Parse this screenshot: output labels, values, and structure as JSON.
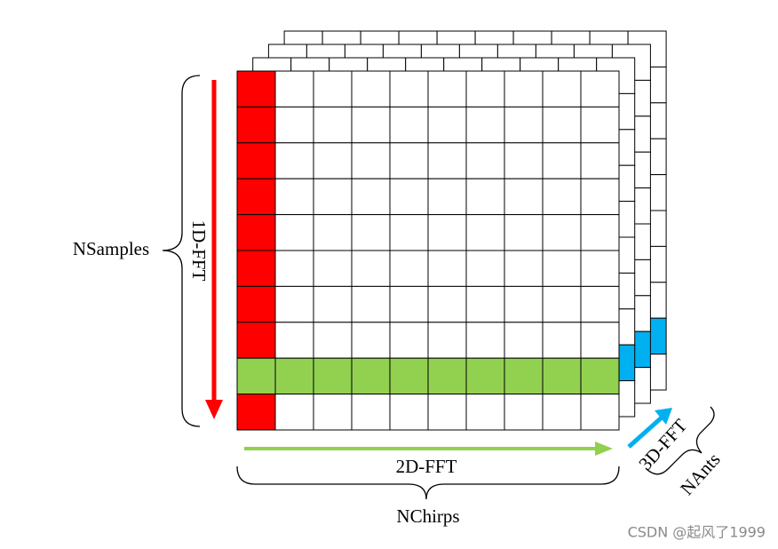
{
  "labels": {
    "samples": "NSamples",
    "fft1": "1D-FFT",
    "fft2": "2D-FFT",
    "chirps": "NChirps",
    "fft3": "3D-FFT",
    "ants": "NAnts"
  },
  "watermark": "CSDN @起风了1999"
}
